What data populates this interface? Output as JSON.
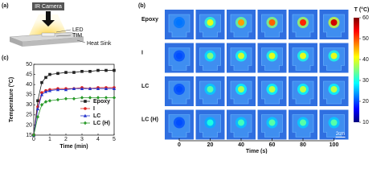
{
  "panel_labels": [
    "(a)",
    "(b)",
    "(c)"
  ],
  "schematic": {
    "camera": "IR Camera",
    "layers": [
      "LED",
      "TIM",
      "Heat Sink"
    ]
  },
  "chart_data": [
    {
      "type": "line",
      "xlabel": "Time (min)",
      "ylabel": "Temperature (°C)",
      "xlim": [
        0,
        5
      ],
      "xticks": [
        0,
        1,
        2,
        3,
        4,
        5
      ],
      "ylim": [
        15,
        50
      ],
      "yticks": [
        15,
        20,
        25,
        30,
        35,
        40,
        45,
        50
      ],
      "x": [
        0,
        0.25,
        0.5,
        0.75,
        1,
        1.5,
        2,
        2.5,
        3,
        3.5,
        4,
        4.5,
        5
      ],
      "series": [
        {
          "name": "Epoxy",
          "color": "#222222",
          "marker": "square",
          "values": [
            15,
            32,
            41,
            43.5,
            45,
            45.5,
            46,
            46,
            46.5,
            46.5,
            47,
            47,
            47
          ]
        },
        {
          "name": "I",
          "color": "#e0201b",
          "marker": "circle",
          "values": [
            15,
            29,
            36,
            37,
            37.5,
            38,
            38,
            38,
            38.5,
            38,
            38.5,
            38.5,
            38.5
          ]
        },
        {
          "name": "LC",
          "color": "#2233cc",
          "marker": "triangle",
          "values": [
            15,
            28,
            35,
            36.5,
            37,
            37.5,
            37.5,
            38,
            38,
            38,
            38,
            38,
            38
          ]
        },
        {
          "name": "LC (H)",
          "color": "#2a9a2a",
          "marker": "diamond",
          "values": [
            15,
            24,
            30,
            31.5,
            32,
            32.5,
            33,
            33,
            33.5,
            33.5,
            33.5,
            33.5,
            33.5
          ]
        }
      ],
      "legend": "lower-right"
    },
    {
      "type": "image-grid",
      "xlabel": "Time (s)",
      "categories": [
        0,
        20,
        40,
        60,
        80,
        100
      ],
      "rows": [
        "Epoxy",
        "I",
        "LC",
        "LC (H)"
      ],
      "values": [
        [
          22,
          40,
          46,
          49,
          52,
          56
        ],
        [
          20,
          35,
          39,
          40,
          40,
          40
        ],
        [
          20,
          33,
          37,
          38,
          38,
          38
        ],
        [
          20,
          30,
          32,
          33,
          33,
          33
        ]
      ],
      "colorbar": {
        "label": "T (°C)",
        "lim": [
          10,
          60
        ],
        "ticks": [
          10,
          20,
          30,
          40,
          50,
          60
        ]
      },
      "scale_bar": "2cm"
    }
  ]
}
